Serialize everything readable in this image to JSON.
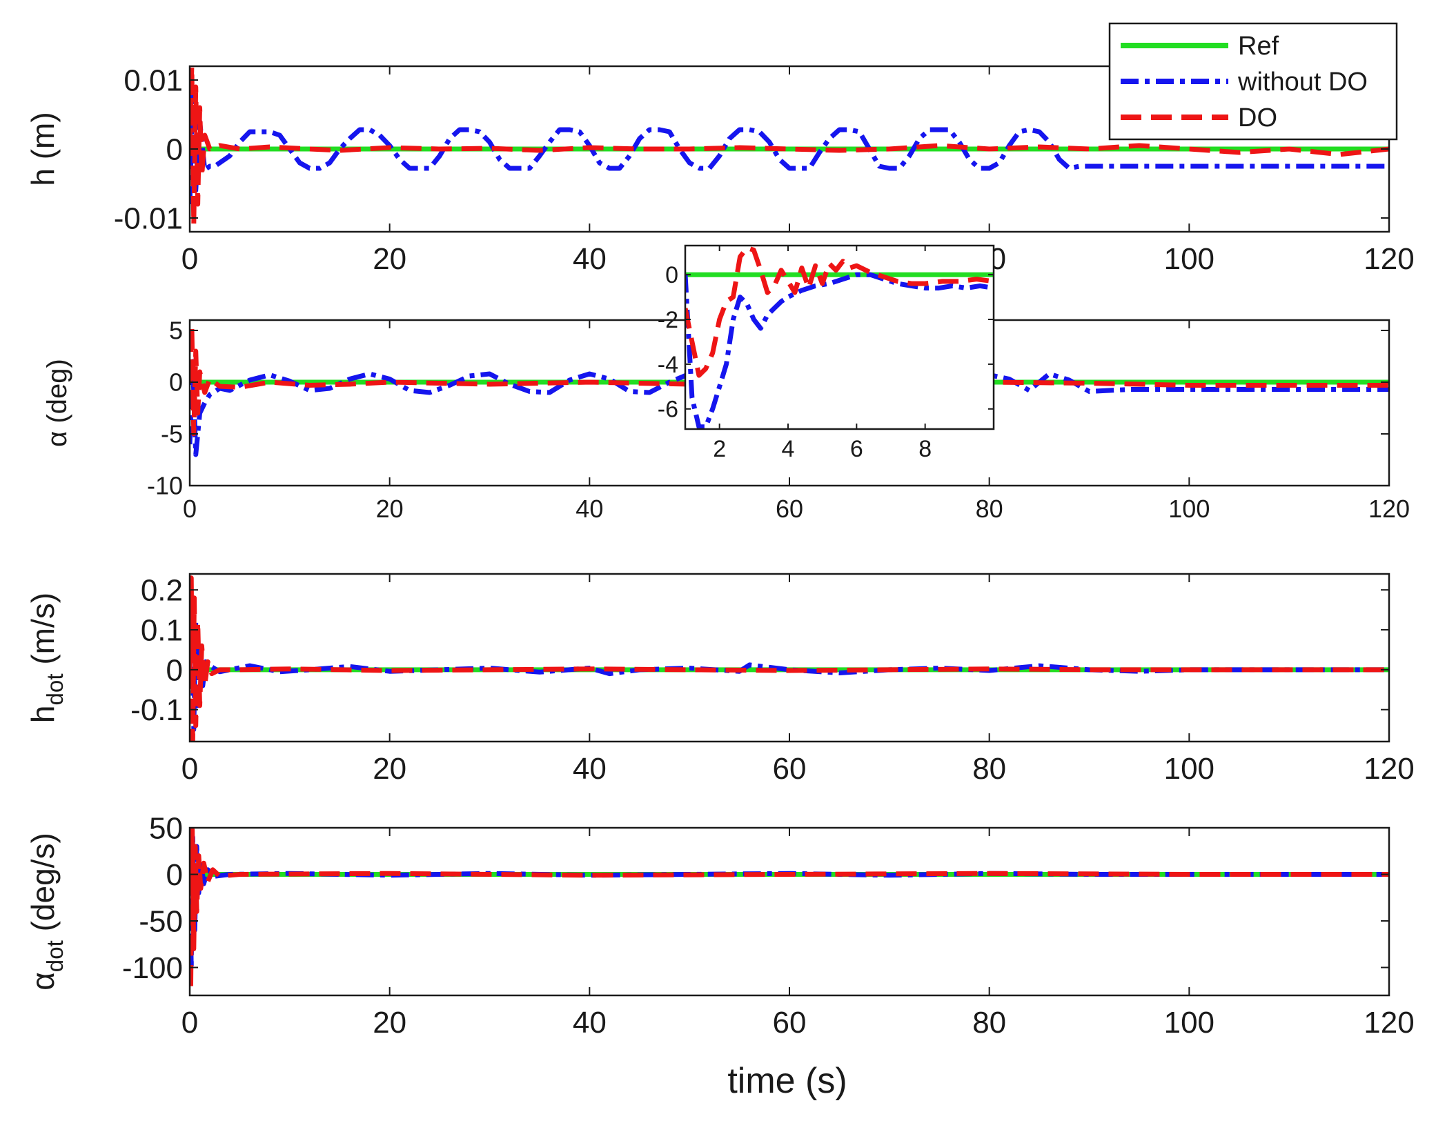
{
  "colors": {
    "ref": "#22dd22",
    "without_do": "#1515ee",
    "do": "#ee1515",
    "axes": "#1a1a1a"
  },
  "legend": {
    "placement": "top-right",
    "entries": [
      {
        "label": "Ref",
        "series": "ref",
        "style": "solid"
      },
      {
        "label": "without DO",
        "series": "without_do",
        "style": "dashdot"
      },
      {
        "label": "DO",
        "series": "do",
        "style": "dashed"
      }
    ]
  },
  "xlabel": "time (s)",
  "chart_data": [
    {
      "type": "line",
      "ylabel": "h (m)",
      "xlim": [
        0,
        120
      ],
      "ylim": [
        -0.012,
        0.012
      ],
      "xticks": [
        0,
        20,
        40,
        60,
        80,
        100,
        120
      ],
      "xtick_labels": [
        "0",
        "20",
        "40",
        "60",
        "80",
        "100",
        "120"
      ],
      "yticks": [
        -0.01,
        0,
        0.01
      ],
      "ytick_labels": [
        "-0.01",
        "0",
        "0.01"
      ],
      "series": [
        {
          "key": "ref",
          "x": [
            0,
            120
          ],
          "y": [
            0,
            0
          ]
        },
        {
          "key": "without_do",
          "x": [
            0,
            0.3,
            0.6,
            1,
            1.5,
            2,
            2.5,
            3,
            4,
            5,
            6,
            7,
            8,
            9,
            10,
            11,
            12,
            13,
            14,
            15,
            16,
            17,
            18,
            19,
            20,
            21,
            22,
            23,
            24,
            25,
            26,
            27,
            28,
            29,
            30,
            31,
            32,
            33,
            34,
            35,
            36,
            37,
            38,
            39,
            40,
            41,
            42,
            43,
            44,
            45,
            46,
            47,
            48,
            49,
            50,
            51,
            52,
            53,
            54,
            55,
            56,
            57,
            58,
            59,
            60,
            61,
            62,
            63,
            64,
            65,
            66,
            67,
            68,
            69,
            70,
            71,
            72,
            73,
            74,
            75,
            76,
            77,
            78,
            79,
            80,
            81,
            82,
            83,
            84,
            85,
            86,
            87,
            88,
            89,
            90,
            91,
            92,
            93,
            100,
            110,
            120
          ],
          "y": [
            -0.008,
            0.009,
            -0.006,
            0.004,
            -0.003,
            -0.0025,
            -0.0025,
            -0.002,
            -0.001,
            0.001,
            0.0025,
            0.0025,
            0.0025,
            0.002,
            0.0,
            -0.002,
            -0.0028,
            -0.0028,
            -0.002,
            0.0,
            0.0015,
            0.0028,
            0.0028,
            0.002,
            0.0005,
            -0.0015,
            -0.0028,
            -0.0028,
            -0.0028,
            -0.001,
            0.0015,
            0.0028,
            0.0028,
            0.0025,
            0.001,
            -0.0015,
            -0.0028,
            -0.0028,
            -0.0028,
            -0.001,
            0.001,
            0.0028,
            0.0028,
            0.0025,
            0.0005,
            -0.002,
            -0.0028,
            -0.0028,
            -0.001,
            0.0015,
            0.0028,
            0.0028,
            0.0025,
            0.0,
            -0.002,
            -0.0028,
            -0.0028,
            -0.001,
            0.0015,
            0.0028,
            0.0028,
            0.0025,
            0.001,
            -0.0015,
            -0.0028,
            -0.0028,
            -0.0028,
            -0.0005,
            0.0015,
            0.0028,
            0.0028,
            0.0025,
            0.0,
            -0.0025,
            -0.0028,
            -0.0028,
            -0.001,
            0.0015,
            0.0028,
            0.0028,
            0.0028,
            0.001,
            -0.0015,
            -0.0028,
            -0.0028,
            -0.002,
            0.0005,
            0.0025,
            0.0028,
            0.0025,
            0.001,
            -0.0015,
            -0.0028,
            -0.0025,
            -0.0025,
            -0.0025,
            -0.0025,
            -0.0025,
            -0.0025,
            -0.0025,
            -0.0025
          ]
        },
        {
          "key": "do",
          "x": [
            0,
            0.2,
            0.4,
            0.6,
            0.8,
            1,
            1.2,
            1.5,
            2,
            3,
            5,
            8,
            12,
            15,
            20,
            25,
            30,
            35,
            40,
            45,
            50,
            55,
            60,
            65,
            70,
            75,
            80,
            85,
            90,
            95,
            100,
            105,
            110,
            115,
            120
          ],
          "y": [
            0,
            0.012,
            -0.011,
            0.009,
            -0.008,
            0.006,
            -0.004,
            0.002,
            0.0,
            0.0005,
            0.0,
            0.0003,
            0.0,
            -0.0002,
            0.0002,
            0.0,
            0.0001,
            -0.0002,
            0.0002,
            0.0,
            0.0,
            0.0002,
            0.0,
            -0.0002,
            0.0,
            0.0005,
            0.0,
            0.0003,
            0.0,
            0.0005,
            0.0,
            -0.0005,
            0.0,
            -0.0008,
            0.0
          ]
        }
      ]
    },
    {
      "type": "line",
      "ylabel": "α (deg)",
      "xlim": [
        0,
        120
      ],
      "ylim": [
        -10,
        6
      ],
      "xticks": [
        0,
        20,
        40,
        60,
        80,
        100,
        120
      ],
      "xtick_labels": [
        "0",
        "20",
        "40",
        "60",
        "80",
        "100",
        "120"
      ],
      "yticks": [
        -10,
        -5,
        0,
        5
      ],
      "ytick_labels": [
        "-10",
        "-5",
        "0",
        "5"
      ],
      "series": [
        {
          "key": "ref",
          "x": [
            0,
            120
          ],
          "y": [
            0,
            0
          ]
        },
        {
          "key": "without_do",
          "x": [
            0,
            0.3,
            0.6,
            1,
            1.5,
            2,
            3,
            4,
            6,
            8,
            10,
            12,
            14,
            16,
            18,
            20,
            22,
            24,
            26,
            28,
            30,
            32,
            34,
            36,
            38,
            40,
            42,
            44,
            46,
            48,
            50,
            52,
            54,
            56,
            58,
            60,
            62,
            64,
            66,
            68,
            70,
            72,
            74,
            76,
            78,
            80,
            82,
            84,
            86,
            88,
            90,
            92,
            94,
            100,
            110,
            120
          ],
          "y": [
            -6,
            2,
            -7,
            -3,
            -2,
            -1.2,
            -0.6,
            -0.8,
            0.2,
            0.7,
            0.1,
            -0.8,
            -0.6,
            0.3,
            0.8,
            0.3,
            -0.8,
            -1.0,
            -0.3,
            0.6,
            0.8,
            -0.2,
            -0.9,
            -1.0,
            0.2,
            0.8,
            0.3,
            -0.9,
            -1.0,
            0.0,
            0.8,
            0.4,
            -0.7,
            -1.0,
            0.0,
            0.8,
            0.3,
            -0.8,
            -1.0,
            0.0,
            0.8,
            0.3,
            -0.8,
            -1.0,
            -0.2,
            0.7,
            0.3,
            -0.8,
            0.8,
            0.2,
            -0.9,
            -0.8,
            -0.7,
            -0.7,
            -0.7,
            -0.7
          ]
        },
        {
          "key": "do",
          "x": [
            0,
            0.2,
            0.4,
            0.6,
            0.8,
            1,
            1.5,
            2,
            3,
            5,
            8,
            12,
            16,
            20,
            30,
            40,
            50,
            60,
            70,
            80,
            90,
            100,
            110,
            120
          ],
          "y": [
            0,
            5.5,
            -5,
            3,
            -3,
            1,
            -1,
            0.3,
            -0.4,
            -0.5,
            0.0,
            -0.3,
            -0.2,
            0.0,
            -0.2,
            0.0,
            -0.2,
            0.0,
            -0.2,
            0.0,
            -0.1,
            -0.3,
            -0.3,
            -0.3
          ]
        }
      ]
    },
    {
      "type": "line",
      "ylabel": "h_dot (m/s)",
      "xlim": [
        0,
        120
      ],
      "ylim": [
        -0.18,
        0.24
      ],
      "xticks": [
        0,
        20,
        40,
        60,
        80,
        100,
        120
      ],
      "xtick_labels": [
        "0",
        "20",
        "40",
        "60",
        "80",
        "100",
        "120"
      ],
      "yticks": [
        -0.1,
        0,
        0.1,
        0.2
      ],
      "ytick_labels": [
        "-0.1",
        "0",
        "0.1",
        "0.2"
      ],
      "series": [
        {
          "key": "ref",
          "x": [
            0,
            120
          ],
          "y": [
            0,
            0
          ]
        },
        {
          "key": "without_do",
          "x": [
            0,
            0.2,
            0.4,
            0.6,
            0.8,
            1,
            1.3,
            1.6,
            2,
            3,
            6,
            9,
            12,
            16,
            20,
            25,
            30,
            35,
            40,
            42,
            45,
            50,
            55,
            56,
            60,
            65,
            70,
            75,
            80,
            85,
            90,
            95,
            100,
            110,
            120
          ],
          "y": [
            0,
            0.18,
            -0.15,
            0.12,
            -0.09,
            0.06,
            -0.04,
            0.02,
            0.01,
            -0.005,
            0.01,
            -0.005,
            0.0,
            0.008,
            -0.004,
            0.0,
            0.004,
            -0.006,
            0.004,
            -0.01,
            0.0,
            0.004,
            -0.004,
            0.012,
            0.0,
            -0.008,
            0.0,
            0.004,
            -0.002,
            0.01,
            0.0,
            -0.004,
            0.0,
            0.0,
            0.0
          ]
        },
        {
          "key": "do",
          "x": [
            0,
            0.15,
            0.3,
            0.45,
            0.6,
            0.8,
            1,
            1.2,
            1.5,
            1.8,
            2.2,
            3,
            5,
            10,
            20,
            30,
            40,
            50,
            60,
            70,
            80,
            90,
            100,
            110,
            120
          ],
          "y": [
            0,
            0.23,
            -0.18,
            0.18,
            -0.14,
            0.12,
            -0.09,
            0.06,
            -0.04,
            0.02,
            -0.01,
            0.0,
            0.0,
            0.002,
            -0.002,
            0.0,
            0.002,
            0.0,
            -0.002,
            0.0,
            0.002,
            0.0,
            0.0,
            0.0,
            0.0
          ]
        }
      ]
    },
    {
      "type": "line",
      "ylabel": "α_dot (deg/s)",
      "xlim": [
        0,
        120
      ],
      "ylim": [
        -130,
        50
      ],
      "xticks": [
        0,
        20,
        40,
        60,
        80,
        100,
        120
      ],
      "xtick_labels": [
        "0",
        "20",
        "40",
        "60",
        "80",
        "100",
        "120"
      ],
      "yticks": [
        -100,
        -50,
        0,
        50
      ],
      "ytick_labels": [
        "-100",
        "-50",
        "0",
        "50"
      ],
      "series": [
        {
          "key": "ref",
          "x": [
            0,
            120
          ],
          "y": [
            0,
            0
          ]
        },
        {
          "key": "without_do",
          "x": [
            0,
            0.15,
            0.3,
            0.5,
            0.7,
            0.9,
            1.1,
            1.4,
            1.8,
            2.5,
            4,
            10,
            20,
            30,
            40,
            50,
            60,
            70,
            80,
            90,
            100,
            110,
            120
          ],
          "y": [
            0,
            -100,
            40,
            -60,
            30,
            -20,
            15,
            -10,
            5,
            -2,
            0,
            1,
            -1,
            1,
            -1,
            0,
            1,
            -1,
            1,
            0,
            0,
            0,
            0
          ]
        },
        {
          "key": "do",
          "x": [
            0,
            0.1,
            0.25,
            0.4,
            0.55,
            0.7,
            0.9,
            1.1,
            1.4,
            1.8,
            2.3,
            3,
            5,
            20,
            40,
            60,
            80,
            100,
            120
          ],
          "y": [
            0,
            -125,
            48,
            -80,
            30,
            -40,
            20,
            -15,
            12,
            -8,
            5,
            -2,
            0,
            1,
            -1,
            0,
            1,
            0,
            0
          ]
        }
      ]
    },
    {
      "type": "line",
      "role": "inset",
      "xlim": [
        1,
        10
      ],
      "ylim": [
        -6.9,
        1.3
      ],
      "xticks": [
        2,
        4,
        6,
        8
      ],
      "xtick_labels": [
        "2",
        "4",
        "6",
        "8"
      ],
      "yticks": [
        -6,
        -4,
        -2,
        0
      ],
      "ytick_labels": [
        "-6",
        "-4",
        "-2",
        "0"
      ],
      "series": [
        {
          "key": "ref",
          "x": [
            1,
            10
          ],
          "y": [
            0,
            0
          ]
        },
        {
          "key": "without_do",
          "x": [
            1,
            1.2,
            1.4,
            1.6,
            1.8,
            2.0,
            2.2,
            2.4,
            2.6,
            2.8,
            3.0,
            3.2,
            3.4,
            3.6,
            3.8,
            4.0,
            4.4,
            4.8,
            5.2,
            5.6,
            6.0,
            6.4,
            6.8,
            7.2,
            7.6,
            8.0,
            8.4,
            8.8,
            9.2,
            9.6,
            10
          ],
          "y": [
            0,
            -5.5,
            -6.8,
            -6.8,
            -6.0,
            -5.0,
            -4.0,
            -2.0,
            -1.0,
            -1.3,
            -2.0,
            -2.4,
            -1.8,
            -1.5,
            -1.2,
            -1.0,
            -0.7,
            -0.5,
            -0.4,
            -0.2,
            0.0,
            0.0,
            -0.2,
            -0.4,
            -0.5,
            -0.6,
            -0.6,
            -0.5,
            -0.6,
            -0.5,
            -0.6
          ]
        },
        {
          "key": "do",
          "x": [
            1,
            1.2,
            1.4,
            1.6,
            1.8,
            2.0,
            2.2,
            2.4,
            2.6,
            2.8,
            3.0,
            3.2,
            3.4,
            3.6,
            3.8,
            4.0,
            4.2,
            4.4,
            4.6,
            4.8,
            5.0,
            5.2,
            5.4,
            5.6,
            5.8,
            6.0,
            6.4,
            6.8,
            7.2,
            7.6,
            8.0,
            8.5,
            9.0,
            9.5,
            10
          ],
          "y": [
            -1.5,
            -3.0,
            -4.5,
            -4.2,
            -3.5,
            -2.0,
            -1.2,
            -1.0,
            0.8,
            1.2,
            1.1,
            0.2,
            -0.8,
            -0.5,
            0.2,
            -0.3,
            -0.8,
            0.3,
            -0.6,
            0.4,
            -0.4,
            0.5,
            0.2,
            0.6,
            0.3,
            0.4,
            0.1,
            -0.1,
            -0.3,
            -0.4,
            -0.4,
            -0.3,
            -0.3,
            -0.2,
            -0.3
          ]
        }
      ]
    }
  ]
}
